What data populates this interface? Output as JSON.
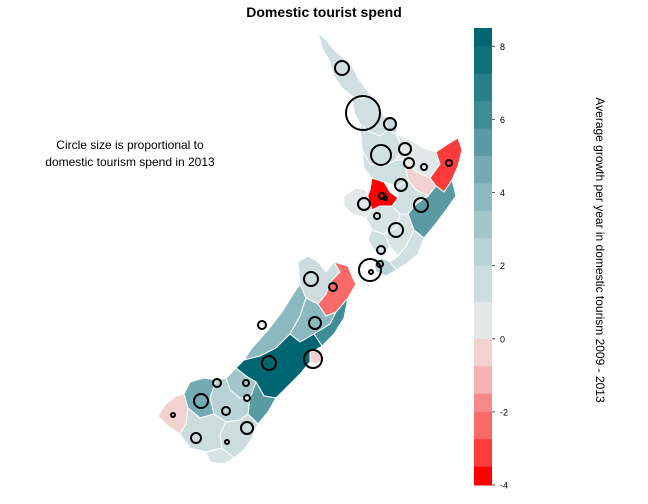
{
  "title": "Domestic tourist spend",
  "annotation": "Circle size is proportional to\ndomestic tourism spend in 2013",
  "colorbar": {
    "label": "Average growth per year in domestic tourism 2009 - 2013",
    "min": -4,
    "max": 8.5,
    "ticks": [
      8,
      6,
      4,
      2,
      0,
      -2,
      -4
    ],
    "bins": [
      {
        "from": 8,
        "to": 8.5,
        "color": "#006672"
      },
      {
        "from": 7.25,
        "to": 8,
        "color": "#0f707b"
      },
      {
        "from": 6.5,
        "to": 7.25,
        "color": "#277f88"
      },
      {
        "from": 5.75,
        "to": 6.5,
        "color": "#3e8c96"
      },
      {
        "from": 5,
        "to": 5.75,
        "color": "#5a9ba3"
      },
      {
        "from": 4.25,
        "to": 5,
        "color": "#74abb2"
      },
      {
        "from": 3.5,
        "to": 4.25,
        "color": "#8cb9bf"
      },
      {
        "from": 2.75,
        "to": 3.5,
        "color": "#a3c6ca"
      },
      {
        "from": 2,
        "to": 2.75,
        "color": "#b8d2d5"
      },
      {
        "from": 1,
        "to": 2,
        "color": "#cddddf"
      },
      {
        "from": 0,
        "to": 1,
        "color": "#e3e7e7"
      },
      {
        "from": -0.75,
        "to": 0,
        "color": "#f2d2d1"
      },
      {
        "from": -1.5,
        "to": -0.75,
        "color": "#f5b4b3"
      },
      {
        "from": -2,
        "to": -1.5,
        "color": "#f78a89"
      },
      {
        "from": -2.75,
        "to": -2,
        "color": "#fa6a69"
      },
      {
        "from": -3.5,
        "to": -2.75,
        "color": "#fc3b3a"
      },
      {
        "from": -4,
        "to": -3.5,
        "color": "#ff0000"
      }
    ]
  },
  "colors": {
    "highest": "#006672",
    "lowest": "#ff0000",
    "neutral": "#e3e7e7",
    "border": "#ffffff",
    "circle": "#000000"
  }
}
